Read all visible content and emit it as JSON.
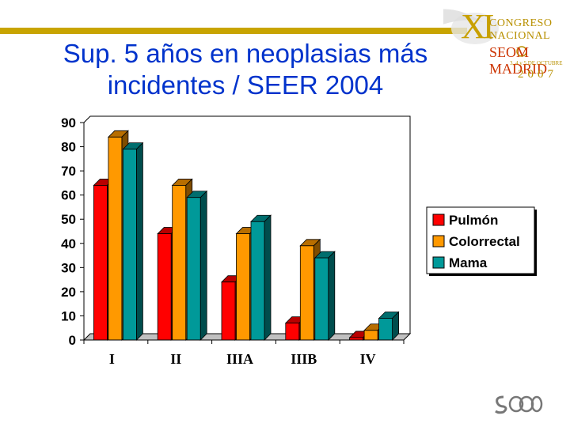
{
  "header": {
    "title": "Sup. 5 años en neoplasias más incidentes / SEER 2004"
  },
  "logo": {
    "roman": "XI",
    "line1": "CONGRESO",
    "line2": "NACIONAL",
    "line3": "SEOM MADRID",
    "dates": "3, 4 y 5 DE OCTUBRE",
    "year": "2007"
  },
  "colors": {
    "title": "#0033cc",
    "accent_bar": "#c8a400"
  },
  "chart_data": {
    "type": "bar",
    "title": "",
    "xlabel": "",
    "ylabel": "",
    "categories": [
      "I",
      "II",
      "IIIA",
      "IIIB",
      "IV"
    ],
    "ylim": [
      0,
      90
    ],
    "yticks": [
      0,
      10,
      20,
      30,
      40,
      50,
      60,
      70,
      80,
      90
    ],
    "grid": false,
    "legend_position": "right",
    "series": [
      {
        "name": "Pulmón",
        "color": "#ff0000",
        "values": [
          64,
          44,
          24,
          7,
          1
        ]
      },
      {
        "name": "Colorrectal",
        "color": "#ff9900",
        "values": [
          84,
          64,
          44,
          39,
          4
        ]
      },
      {
        "name": "Mama",
        "color": "#009999",
        "values": [
          79,
          59,
          49,
          34,
          9
        ]
      }
    ]
  }
}
